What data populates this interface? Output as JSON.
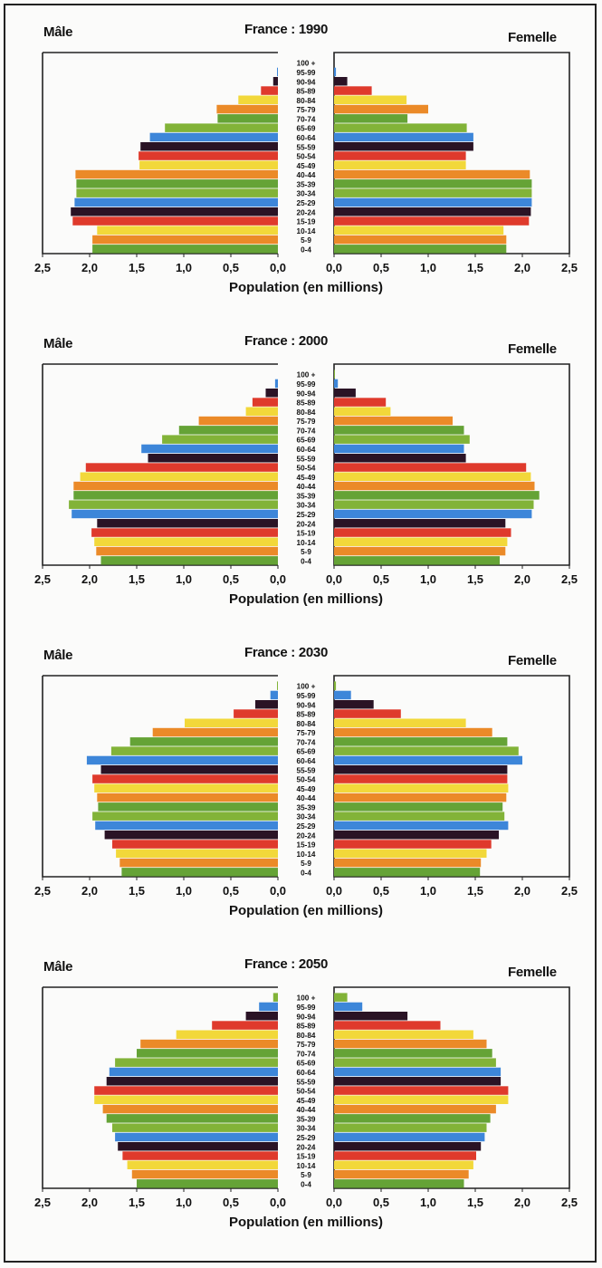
{
  "colors": {
    "band_cycle": [
      "#65a336",
      "#eb8a28",
      "#f2d83a",
      "#df3a2c",
      "#2a1325",
      "#3d86d9",
      "#82b338"
    ],
    "axis": "#222222"
  },
  "age_groups": [
    "0-4",
    "5-9",
    "10-14",
    "15-19",
    "20-24",
    "25-29",
    "30-34",
    "35-39",
    "40-44",
    "45-49",
    "50-54",
    "55-59",
    "60-64",
    "65-69",
    "70-74",
    "75-79",
    "80-84",
    "85-89",
    "90-94",
    "95-99",
    "100 +"
  ],
  "xlabel": "Population (en millions)",
  "male_ticks": [
    "2,5",
    "2,0",
    "1,5",
    "1,0",
    "0,5",
    "0,0"
  ],
  "female_ticks": [
    "0,0",
    "0,5",
    "1,0",
    "1,5",
    "2,0",
    "2,5"
  ],
  "chart_data": [
    {
      "type": "bar",
      "title": "France : 1990",
      "male_label": "Mâle",
      "female_label": "Femelle",
      "xlabel": "Population (en millions)",
      "xlim": [
        0,
        2.5
      ],
      "categories": [
        "0-4",
        "5-9",
        "10-14",
        "15-19",
        "20-24",
        "25-29",
        "30-34",
        "35-39",
        "40-44",
        "45-49",
        "50-54",
        "55-59",
        "60-64",
        "65-69",
        "70-74",
        "75-79",
        "80-84",
        "85-89",
        "90-94",
        "95-99",
        "100 +"
      ],
      "series": [
        {
          "name": "Mâle",
          "values": [
            1.97,
            1.97,
            1.92,
            2.18,
            2.2,
            2.16,
            2.14,
            2.14,
            2.15,
            1.47,
            1.48,
            1.46,
            1.36,
            1.2,
            0.64,
            0.65,
            0.42,
            0.18,
            0.05,
            0.01,
            0.0
          ]
        },
        {
          "name": "Femelle",
          "values": [
            1.83,
            1.83,
            1.8,
            2.07,
            2.09,
            2.1,
            2.1,
            2.1,
            2.08,
            1.4,
            1.4,
            1.48,
            1.48,
            1.41,
            0.78,
            1.0,
            0.77,
            0.4,
            0.14,
            0.02,
            0.0
          ]
        }
      ]
    },
    {
      "type": "bar",
      "title": "France : 2000",
      "male_label": "Mâle",
      "female_label": "Femelle",
      "xlabel": "Population (en millions)",
      "xlim": [
        0,
        2.5
      ],
      "categories": [
        "0-4",
        "5-9",
        "10-14",
        "15-19",
        "20-24",
        "25-29",
        "30-34",
        "35-39",
        "40-44",
        "45-49",
        "50-54",
        "55-59",
        "60-64",
        "65-69",
        "70-74",
        "75-79",
        "80-84",
        "85-89",
        "90-94",
        "95-99",
        "100 +"
      ],
      "series": [
        {
          "name": "Mâle",
          "values": [
            1.88,
            1.93,
            1.95,
            1.98,
            1.92,
            2.19,
            2.22,
            2.17,
            2.17,
            2.1,
            2.04,
            1.38,
            1.45,
            1.23,
            1.05,
            0.84,
            0.34,
            0.27,
            0.13,
            0.03,
            0.0
          ]
        },
        {
          "name": "Femelle",
          "values": [
            1.76,
            1.82,
            1.84,
            1.88,
            1.82,
            2.1,
            2.12,
            2.18,
            2.13,
            2.09,
            2.04,
            1.4,
            1.38,
            1.44,
            1.38,
            1.26,
            0.6,
            0.55,
            0.23,
            0.04,
            0.01
          ]
        }
      ]
    },
    {
      "type": "bar",
      "title": "France : 2030",
      "male_label": "Mâle",
      "female_label": "Femelle",
      "xlabel": "Population (en millions)",
      "xlim": [
        0,
        2.5
      ],
      "categories": [
        "0-4",
        "5-9",
        "10-14",
        "15-19",
        "20-24",
        "25-29",
        "30-34",
        "35-39",
        "40-44",
        "45-49",
        "50-54",
        "55-59",
        "60-64",
        "65-69",
        "70-74",
        "75-79",
        "80-84",
        "85-89",
        "90-94",
        "95-99",
        "100 +"
      ],
      "series": [
        {
          "name": "Mâle",
          "values": [
            1.66,
            1.68,
            1.72,
            1.76,
            1.84,
            1.94,
            1.97,
            1.91,
            1.92,
            1.95,
            1.97,
            1.88,
            2.03,
            1.77,
            1.57,
            1.33,
            0.99,
            0.47,
            0.24,
            0.08,
            0.01
          ]
        },
        {
          "name": "Femelle",
          "values": [
            1.55,
            1.56,
            1.62,
            1.67,
            1.75,
            1.85,
            1.81,
            1.79,
            1.83,
            1.85,
            1.84,
            1.84,
            2.0,
            1.96,
            1.84,
            1.68,
            1.4,
            0.71,
            0.42,
            0.18,
            0.02
          ]
        }
      ]
    },
    {
      "type": "bar",
      "title": "France : 2050",
      "male_label": "Mâle",
      "female_label": "Femelle",
      "xlabel": "Population (en millions)",
      "xlim": [
        0,
        2.5
      ],
      "categories": [
        "0-4",
        "5-9",
        "10-14",
        "15-19",
        "20-24",
        "25-29",
        "30-34",
        "35-39",
        "40-44",
        "45-49",
        "50-54",
        "55-59",
        "60-64",
        "65-69",
        "70-74",
        "75-79",
        "80-84",
        "85-89",
        "90-94",
        "95-99",
        "100 +"
      ],
      "series": [
        {
          "name": "Mâle",
          "values": [
            1.5,
            1.55,
            1.6,
            1.65,
            1.7,
            1.73,
            1.76,
            1.82,
            1.86,
            1.95,
            1.95,
            1.82,
            1.79,
            1.73,
            1.5,
            1.46,
            1.08,
            0.7,
            0.34,
            0.2,
            0.05
          ]
        },
        {
          "name": "Femelle",
          "values": [
            1.38,
            1.43,
            1.48,
            1.51,
            1.56,
            1.6,
            1.62,
            1.66,
            1.72,
            1.85,
            1.85,
            1.77,
            1.77,
            1.72,
            1.68,
            1.62,
            1.48,
            1.13,
            0.78,
            0.3,
            0.14
          ]
        }
      ]
    }
  ]
}
